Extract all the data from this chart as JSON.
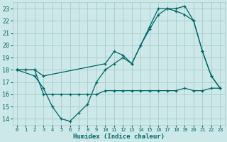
{
  "xlabel": "Humidex (Indice chaleur)",
  "bg_color": "#cce8e8",
  "grid_color": "#aacccc",
  "line_color": "#006666",
  "xlim": [
    -0.5,
    23.5
  ],
  "ylim": [
    13.5,
    23.5
  ],
  "xticks": [
    0,
    1,
    2,
    3,
    4,
    5,
    6,
    7,
    8,
    9,
    10,
    11,
    12,
    13,
    14,
    15,
    16,
    17,
    18,
    19,
    20,
    21,
    22,
    23
  ],
  "yticks": [
    14,
    15,
    16,
    17,
    18,
    19,
    20,
    21,
    22,
    23
  ],
  "line1_x": [
    0,
    1,
    2,
    3,
    4,
    5,
    6,
    7,
    8,
    9,
    10,
    11,
    12,
    13,
    14,
    15,
    16,
    17,
    18,
    19,
    20,
    21,
    22,
    23
  ],
  "line1_y": [
    18,
    18,
    18,
    16,
    16,
    16,
    16,
    16,
    16,
    16,
    16.3,
    16.3,
    16.3,
    16.3,
    16.3,
    16.3,
    16.3,
    16.3,
    16.3,
    16.5,
    16.3,
    16.3,
    16.5,
    16.5
  ],
  "line2_x": [
    0,
    2,
    3,
    4,
    5,
    6,
    7,
    8,
    9,
    10,
    11,
    12,
    13,
    14,
    15,
    16,
    17,
    18,
    19,
    20,
    21,
    22,
    23
  ],
  "line2_y": [
    18,
    17.5,
    16.5,
    15,
    14,
    13.8,
    14.5,
    15.2,
    17,
    18,
    18.5,
    19,
    18.5,
    20,
    21.3,
    22.5,
    23,
    23,
    23.2,
    22,
    19.5,
    17.5,
    16.5
  ],
  "line3_x": [
    0,
    1,
    2,
    3,
    10,
    11,
    12,
    13,
    14,
    15,
    16,
    17,
    18,
    19,
    20,
    21,
    22,
    23
  ],
  "line3_y": [
    18,
    18,
    18,
    17.5,
    18.5,
    19.5,
    19.2,
    18.5,
    20,
    21.5,
    23,
    23,
    22.8,
    22.5,
    22,
    19.5,
    17.5,
    16.5
  ]
}
